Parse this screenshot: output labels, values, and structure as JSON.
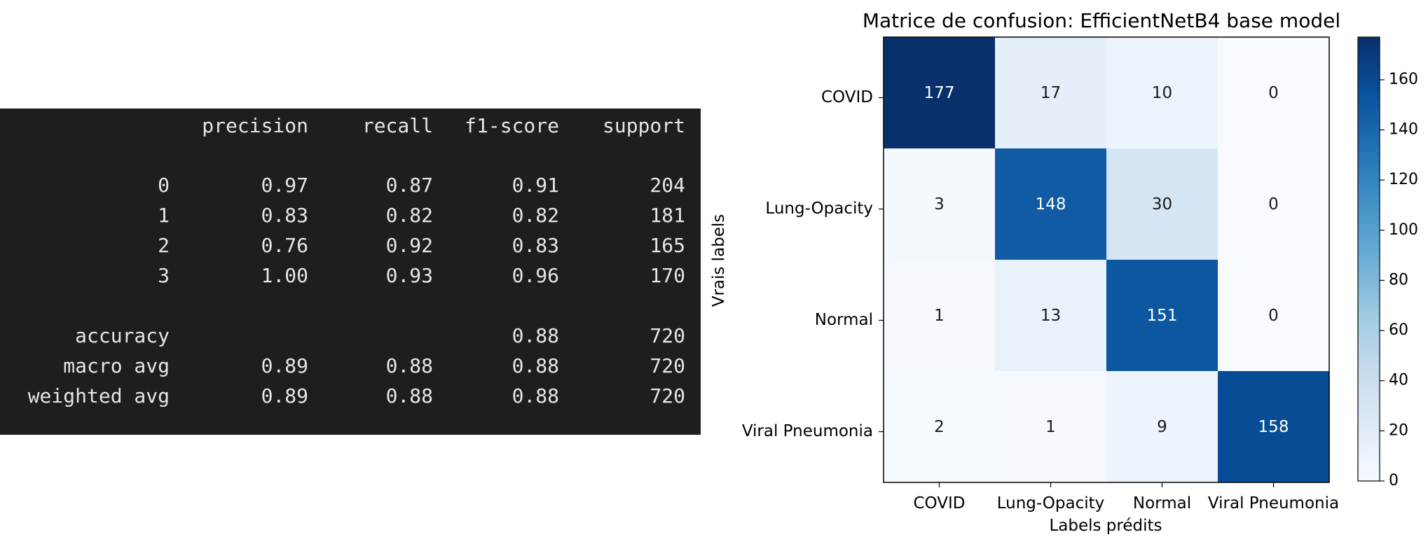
{
  "report": {
    "headers": [
      "",
      "precision",
      "recall",
      "f1-score",
      "support"
    ],
    "rows": [
      [
        "0",
        "0.97",
        "0.87",
        "0.91",
        "204"
      ],
      [
        "1",
        "0.83",
        "0.82",
        "0.82",
        "181"
      ],
      [
        "2",
        "0.76",
        "0.92",
        "0.83",
        "165"
      ],
      [
        "3",
        "1.00",
        "0.93",
        "0.96",
        "170"
      ]
    ],
    "summary": [
      [
        "accuracy",
        "",
        "",
        "0.88",
        "720"
      ],
      [
        "macro avg",
        "0.89",
        "0.88",
        "0.88",
        "720"
      ],
      [
        "weighted avg",
        "0.89",
        "0.88",
        "0.88",
        "720"
      ]
    ]
  },
  "chart_data": {
    "type": "heatmap",
    "title": "Matrice de confusion: EfficientNetB4 base model",
    "xlabel": "Labels prédits",
    "ylabel": "Vrais labels",
    "x_categories": [
      "COVID",
      "Lung-Opacity",
      "Normal",
      "Viral Pneumonia"
    ],
    "y_categories": [
      "COVID",
      "Lung-Opacity",
      "Normal",
      "Viral Pneumonia"
    ],
    "values": [
      [
        177,
        17,
        10,
        0
      ],
      [
        3,
        148,
        30,
        0
      ],
      [
        1,
        13,
        151,
        0
      ],
      [
        2,
        1,
        9,
        158
      ]
    ],
    "colormap": "Blues",
    "colorbar": {
      "min": 0,
      "max": 177,
      "ticks": [
        0,
        20,
        40,
        60,
        80,
        100,
        120,
        140,
        160
      ]
    },
    "colors": {
      "low": "#f7fbff",
      "high": "#08306b"
    }
  }
}
